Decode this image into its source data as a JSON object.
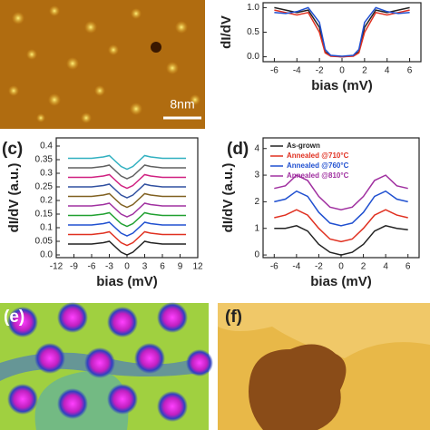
{
  "figure": {
    "scale_bar": "8nm",
    "panel_labels": [
      "(c)",
      "(d)",
      "(e)",
      "(f)"
    ]
  },
  "chart_data": [
    {
      "type": "line",
      "ylabel": "dI/dV",
      "xlabel": "bias (mV)",
      "xlim": [
        -7,
        7
      ],
      "ylim": [
        -0.1,
        1.1
      ],
      "xticks": [
        -6,
        -4,
        -2,
        0,
        2,
        4,
        6
      ],
      "yticks": [
        {
          "value": 0,
          "label": "0.0"
        },
        0.5,
        {
          "value": 1,
          "label": "1.0"
        }
      ],
      "x": [
        -6,
        -5,
        -4,
        -3,
        -2,
        -1.5,
        -1,
        0,
        1,
        1.5,
        2,
        3,
        4,
        5,
        6
      ],
      "series": [
        {
          "color": "#222222",
          "values": [
            1.0,
            0.95,
            0.9,
            0.95,
            0.6,
            0.1,
            0.02,
            0.0,
            0.02,
            0.1,
            0.6,
            0.95,
            0.9,
            0.95,
            1.0
          ]
        },
        {
          "color": "#e03020",
          "values": [
            0.95,
            0.9,
            0.85,
            0.9,
            0.5,
            0.08,
            0.01,
            0.0,
            0.01,
            0.08,
            0.5,
            0.9,
            0.85,
            0.9,
            0.95
          ]
        },
        {
          "color": "#2050d0",
          "values": [
            0.9,
            0.88,
            0.92,
            1.0,
            0.7,
            0.15,
            0.03,
            0.01,
            0.03,
            0.15,
            0.7,
            1.0,
            0.92,
            0.88,
            0.9
          ]
        }
      ]
    },
    {
      "type": "line",
      "ylabel": "dI/dV (a.u.)",
      "xlabel": "bias (mV)",
      "xlim": [
        -12,
        12
      ],
      "ylim": [
        -0.01,
        0.43
      ],
      "xticks": [
        -12,
        -9,
        -6,
        -3,
        0,
        3,
        6,
        9,
        12
      ],
      "yticks": [
        {
          "value": 0,
          "label": "0.0"
        },
        0.05,
        0.1,
        0.15,
        0.2,
        0.25,
        0.3,
        0.35,
        0.4
      ],
      "x": [
        -10,
        -8,
        -6,
        -4,
        -3,
        -2,
        -1,
        0,
        1,
        2,
        3,
        4,
        6,
        8,
        10
      ],
      "series": [
        {
          "color": "#222222",
          "values": [
            0.04,
            0.04,
            0.04,
            0.045,
            0.05,
            0.03,
            0.01,
            0.0,
            0.01,
            0.03,
            0.05,
            0.045,
            0.04,
            0.04,
            0.04
          ]
        },
        {
          "color": "#e03020",
          "values": [
            0.075,
            0.075,
            0.075,
            0.08,
            0.085,
            0.065,
            0.045,
            0.035,
            0.045,
            0.065,
            0.085,
            0.08,
            0.075,
            0.075,
            0.075
          ]
        },
        {
          "color": "#2050d0",
          "values": [
            0.11,
            0.11,
            0.11,
            0.115,
            0.12,
            0.1,
            0.08,
            0.07,
            0.08,
            0.1,
            0.12,
            0.115,
            0.11,
            0.11,
            0.11
          ]
        },
        {
          "color": "#20a030",
          "values": [
            0.145,
            0.145,
            0.145,
            0.15,
            0.155,
            0.135,
            0.115,
            0.105,
            0.115,
            0.135,
            0.155,
            0.15,
            0.145,
            0.145,
            0.145
          ]
        },
        {
          "color": "#a030a0",
          "values": [
            0.18,
            0.18,
            0.18,
            0.185,
            0.19,
            0.17,
            0.15,
            0.14,
            0.15,
            0.17,
            0.19,
            0.185,
            0.18,
            0.18,
            0.18
          ]
        },
        {
          "color": "#806020",
          "values": [
            0.215,
            0.215,
            0.215,
            0.22,
            0.225,
            0.205,
            0.185,
            0.175,
            0.185,
            0.205,
            0.225,
            0.22,
            0.215,
            0.215,
            0.215
          ]
        },
        {
          "color": "#3050a0",
          "values": [
            0.25,
            0.25,
            0.25,
            0.255,
            0.26,
            0.24,
            0.22,
            0.21,
            0.22,
            0.24,
            0.26,
            0.255,
            0.25,
            0.25,
            0.25
          ]
        },
        {
          "color": "#d02080",
          "values": [
            0.285,
            0.285,
            0.285,
            0.29,
            0.295,
            0.275,
            0.255,
            0.245,
            0.255,
            0.275,
            0.295,
            0.29,
            0.285,
            0.285,
            0.285
          ]
        },
        {
          "color": "#606060",
          "values": [
            0.32,
            0.32,
            0.32,
            0.325,
            0.33,
            0.31,
            0.29,
            0.28,
            0.29,
            0.31,
            0.33,
            0.325,
            0.32,
            0.32,
            0.32
          ]
        },
        {
          "color": "#30b0c0",
          "values": [
            0.355,
            0.355,
            0.355,
            0.36,
            0.365,
            0.345,
            0.325,
            0.315,
            0.325,
            0.345,
            0.365,
            0.36,
            0.355,
            0.355,
            0.355
          ]
        }
      ]
    },
    {
      "type": "line",
      "ylabel": "dI/dV (a.u.)",
      "xlabel": "bias (mV)",
      "xlim": [
        -7,
        7
      ],
      "ylim": [
        -0.1,
        4.4
      ],
      "xticks": [
        -6,
        -4,
        -2,
        0,
        2,
        4,
        6
      ],
      "yticks": [
        0,
        1,
        2,
        3,
        4
      ],
      "legend": "upper left",
      "x": [
        -6,
        -5,
        -4,
        -3,
        -2,
        -1,
        0,
        1,
        2,
        3,
        4,
        5,
        6
      ],
      "series": [
        {
          "name": "As-grown",
          "color": "#222222",
          "values": [
            1.0,
            1.0,
            1.1,
            0.9,
            0.4,
            0.1,
            0.0,
            0.1,
            0.4,
            0.9,
            1.1,
            1.0,
            0.95
          ]
        },
        {
          "name": "Annealed @710°C",
          "color": "#e03020",
          "values": [
            1.4,
            1.5,
            1.7,
            1.5,
            1.0,
            0.6,
            0.5,
            0.6,
            1.0,
            1.5,
            1.7,
            1.5,
            1.4
          ]
        },
        {
          "name": "Annealed @760°C",
          "color": "#2050d0",
          "values": [
            2.0,
            2.1,
            2.4,
            2.2,
            1.6,
            1.2,
            1.1,
            1.2,
            1.6,
            2.2,
            2.4,
            2.1,
            2.0
          ]
        },
        {
          "name": "Annealed @810°C",
          "color": "#a030a0",
          "values": [
            2.5,
            2.6,
            3.0,
            2.8,
            2.2,
            1.8,
            1.7,
            1.8,
            2.2,
            2.8,
            3.0,
            2.6,
            2.5
          ]
        }
      ]
    }
  ]
}
